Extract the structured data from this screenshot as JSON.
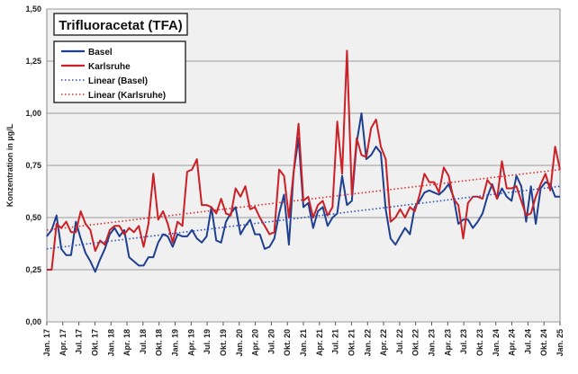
{
  "chart_data": {
    "type": "line",
    "title": "Trifluoracetat (TFA)",
    "ylabel": "Konzentration in µg/L",
    "xlabel": "",
    "ylim": [
      0,
      1.5
    ],
    "yticks": [
      0,
      0.25,
      0.5,
      0.75,
      1.0,
      1.25,
      1.5
    ],
    "ytick_labels": [
      "0,00",
      "0,25",
      "0,50",
      "0,75",
      "1,00",
      "1,25",
      "1,50"
    ],
    "xtick_labels": [
      "Jan. 17",
      "Apr. 17",
      "Jul. 17",
      "Okt. 17",
      "Jan. 18",
      "Apr. 18",
      "Jul. 18",
      "Okt. 18",
      "Jan. 19",
      "Apr. 19",
      "Jul. 19",
      "Okt. 19",
      "Jan. 20",
      "Apr. 20",
      "Jul. 20",
      "Okt. 20",
      "Jan. 21",
      "Apr. 21",
      "Jul. 21",
      "Okt. 21",
      "Jan. 22",
      "Apr. 22",
      "Jul. 22",
      "Okt. 22",
      "Jan. 23",
      "Apr. 23",
      "Jul. 23",
      "Okt. 23",
      "Jan. 24",
      "Apr. 24",
      "Jul. 24",
      "Okt. 24",
      "Jan. 25"
    ],
    "grid": true,
    "legend_position": "top-left",
    "series": [
      {
        "name": "Basel",
        "color": "#1f3f8f",
        "style": "solid",
        "values": [
          0.41,
          0.44,
          0.51,
          0.35,
          0.32,
          0.32,
          0.48,
          0.4,
          0.33,
          0.29,
          0.24,
          0.3,
          0.35,
          0.42,
          0.45,
          0.41,
          0.44,
          0.31,
          0.29,
          0.27,
          0.27,
          0.31,
          0.31,
          0.38,
          0.42,
          0.41,
          0.36,
          0.42,
          0.41,
          0.41,
          0.44,
          0.4,
          0.38,
          0.41,
          0.55,
          0.39,
          0.38,
          0.48,
          0.52,
          0.55,
          0.42,
          0.46,
          0.49,
          0.42,
          0.42,
          0.35,
          0.36,
          0.4,
          0.52,
          0.61,
          0.37,
          0.72,
          0.88,
          0.55,
          0.57,
          0.45,
          0.53,
          0.55,
          0.46,
          0.5,
          0.52,
          0.7,
          0.56,
          0.58,
          0.86,
          1.0,
          0.78,
          0.8,
          0.84,
          0.81,
          0.54,
          0.4,
          0.37,
          0.41,
          0.45,
          0.42,
          0.55,
          0.58,
          0.62,
          0.63,
          0.62,
          0.61,
          0.63,
          0.66,
          0.6,
          0.47,
          0.49,
          0.49,
          0.45,
          0.48,
          0.52,
          0.6,
          0.66,
          0.59,
          0.64,
          0.6,
          0.58,
          0.7,
          0.65,
          0.48,
          0.65,
          0.47,
          0.64,
          0.67,
          0.66,
          0.6,
          0.6
        ]
      },
      {
        "name": "Karlsruhe",
        "color": "#cc1f26",
        "style": "solid",
        "values": [
          0.25,
          0.25,
          0.47,
          0.45,
          0.48,
          0.43,
          0.43,
          0.53,
          0.47,
          0.44,
          0.34,
          0.39,
          0.37,
          0.44,
          0.46,
          0.46,
          0.42,
          0.45,
          0.43,
          0.46,
          0.36,
          0.47,
          0.71,
          0.49,
          0.53,
          0.47,
          0.38,
          0.48,
          0.46,
          0.72,
          0.73,
          0.78,
          0.56,
          0.56,
          0.55,
          0.52,
          0.59,
          0.52,
          0.51,
          0.64,
          0.6,
          0.65,
          0.54,
          0.55,
          0.5,
          0.46,
          0.42,
          0.43,
          0.73,
          0.7,
          0.5,
          0.72,
          0.95,
          0.58,
          0.6,
          0.5,
          0.56,
          0.58,
          0.51,
          0.55,
          0.96,
          0.71,
          1.3,
          0.61,
          0.88,
          0.8,
          0.79,
          0.93,
          0.97,
          0.84,
          0.78,
          0.48,
          0.5,
          0.54,
          0.5,
          0.55,
          0.53,
          0.61,
          0.71,
          0.67,
          0.67,
          0.62,
          0.74,
          0.7,
          0.59,
          0.56,
          0.4,
          0.57,
          0.6,
          0.6,
          0.59,
          0.68,
          0.65,
          0.59,
          0.77,
          0.64,
          0.64,
          0.65,
          0.58,
          0.51,
          0.52,
          0.6,
          0.66,
          0.71,
          0.63,
          0.84,
          0.73
        ]
      },
      {
        "name": "Linear (Basel)",
        "color": "#2b4fb8",
        "style": "dotted",
        "values": [
          0.35,
          0.65
        ]
      },
      {
        "name": "Linear (Karlsruhe)",
        "color": "#d92b2b",
        "style": "dotted",
        "values": [
          0.44,
          0.73
        ]
      }
    ]
  }
}
